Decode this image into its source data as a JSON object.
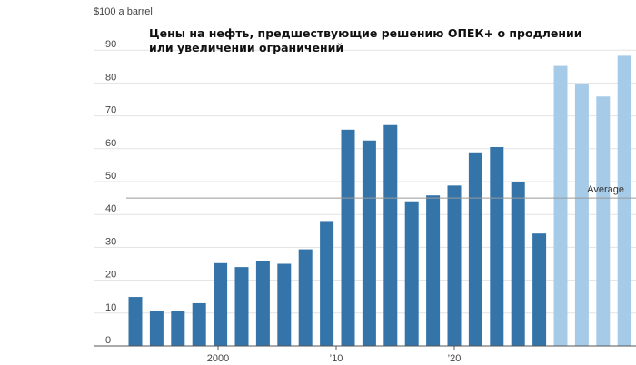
{
  "chart_data": {
    "type": "bar",
    "title": [
      "Цены на нефть, предшествующие решению ОПЕК+ о продлении",
      "или увеличении ограничений"
    ],
    "ylabel": "$100 a barrel",
    "ylim": [
      0,
      100
    ],
    "yticks": [
      0,
      10,
      20,
      30,
      40,
      50,
      60,
      70,
      80,
      90
    ],
    "x_tick_labels": [
      {
        "at": 2000,
        "label": "2000"
      },
      {
        "at": 2010,
        "label": "’10"
      },
      {
        "at": 2020,
        "label": "’20"
      }
    ],
    "grid": true,
    "average": {
      "value": 45,
      "label": "Average"
    },
    "colors": {
      "historical": "#3474a8",
      "recent": "#a6cbe8",
      "grid": "#e3e3e3",
      "axis": "#555555",
      "average_line": "#999999"
    },
    "bars": [
      {
        "x": 1993.0,
        "value": 14.9,
        "group": "historical"
      },
      {
        "x": 1994.8,
        "value": 10.7,
        "group": "historical"
      },
      {
        "x": 1996.6,
        "value": 10.5,
        "group": "historical"
      },
      {
        "x": 1998.4,
        "value": 13.0,
        "group": "historical"
      },
      {
        "x": 2000.2,
        "value": 25.2,
        "group": "historical"
      },
      {
        "x": 2002.0,
        "value": 24.0,
        "group": "historical"
      },
      {
        "x": 2003.8,
        "value": 25.8,
        "group": "historical"
      },
      {
        "x": 2005.6,
        "value": 25.0,
        "group": "historical"
      },
      {
        "x": 2007.4,
        "value": 29.4,
        "group": "historical"
      },
      {
        "x": 2009.2,
        "value": 38.0,
        "group": "historical"
      },
      {
        "x": 2011.0,
        "value": 65.8,
        "group": "historical"
      },
      {
        "x": 2012.8,
        "value": 62.5,
        "group": "historical"
      },
      {
        "x": 2014.6,
        "value": 67.2,
        "group": "historical"
      },
      {
        "x": 2016.4,
        "value": 44.0,
        "group": "historical"
      },
      {
        "x": 2018.2,
        "value": 45.8,
        "group": "historical"
      },
      {
        "x": 2020.0,
        "value": 48.8,
        "group": "historical"
      },
      {
        "x": 2021.8,
        "value": 58.9,
        "group": "historical"
      },
      {
        "x": 2023.6,
        "value": 60.5,
        "group": "historical"
      },
      {
        "x": 2025.4,
        "value": 50.0,
        "group": "historical"
      },
      {
        "x": 2027.2,
        "value": 34.2,
        "group": "historical"
      },
      {
        "x": 2029.0,
        "value": 85.2,
        "group": "recent"
      },
      {
        "x": 2030.8,
        "value": 79.8,
        "group": "recent"
      },
      {
        "x": 2032.6,
        "value": 75.9,
        "group": "recent"
      },
      {
        "x": 2034.4,
        "value": 88.3,
        "group": "recent"
      }
    ]
  }
}
